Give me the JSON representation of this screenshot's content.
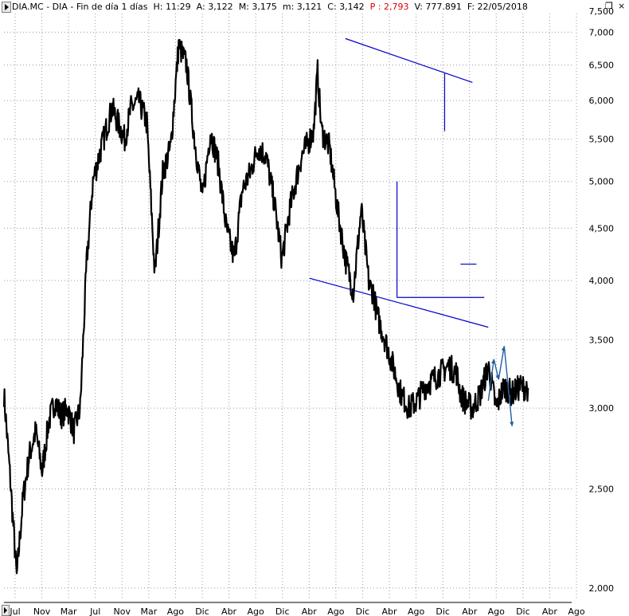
{
  "header": {
    "symbol": "DIA.MC - DIA - Fin de día 1 días",
    "hora": "H: 11:29",
    "apertura": "A: 3,122",
    "maximo": "M: 3,175",
    "minimo": "m: 3,121",
    "cierre": "C: 3,142",
    "p_label": "P",
    "p_value": ": 2,793",
    "volumen": "V: 777.891",
    "fecha": "F: 22/05/2018"
  },
  "window_controls": {
    "restore": "❐",
    "close": "×"
  },
  "chart_data": {
    "type": "line",
    "title": "",
    "xlabel": "",
    "ylabel": "",
    "yscale": "log",
    "ylim": [
      1950,
      7300
    ],
    "y_ticks": [
      2000,
      2500,
      3000,
      3500,
      4000,
      4500,
      5000,
      5500,
      6000,
      6500,
      7000
    ],
    "y_tick_labels": [
      "2,000",
      "2,500",
      "3,000",
      "3,500",
      "4,000",
      "4,500",
      "5,000",
      "5,500",
      "6,000",
      "6,500",
      "7,000"
    ],
    "top_partial_label": "7,500",
    "x_tick_labels": [
      "Jul",
      "Nov",
      "Mar",
      "Jul",
      "Nov",
      "Mar",
      "Ago",
      "Dic",
      "Abr",
      "Ago",
      "Dic",
      "Abr",
      "Ago",
      "Dic",
      "Abr",
      "Ago",
      "Dic",
      "Abr",
      "Ago",
      "Dic",
      "Abr",
      "Ago"
    ],
    "grid": true,
    "series": [
      {
        "color": "#000000",
        "t": [
          0,
          0.8,
          1.6,
          2.4,
          3.2,
          4,
          4.8,
          5.6,
          6.4,
          7.2,
          8,
          8.8,
          9.6,
          10.4,
          11.2,
          12,
          12.8,
          13.6,
          14.4,
          15.2,
          16,
          17,
          18,
          19,
          20,
          21,
          22,
          23,
          24,
          25,
          26,
          27,
          28,
          29,
          30,
          31,
          32,
          33,
          34,
          35,
          36,
          37,
          37.5,
          38,
          39,
          39.5,
          40,
          41,
          42,
          43,
          44,
          45,
          46,
          46.5,
          47,
          48,
          49,
          50,
          51,
          52,
          53,
          54,
          55,
          56,
          57,
          57.5,
          58,
          59,
          60,
          61,
          62,
          62.6,
          63,
          64,
          65,
          66
        ],
        "values": [
          3100,
          2550,
          2050,
          2450,
          2700,
          2850,
          2600,
          2900,
          3050,
          2950,
          3000,
          2850,
          3000,
          4150,
          5000,
          5300,
          5600,
          5900,
          5700,
          5500,
          5900,
          6000,
          5700,
          4050,
          5100,
          5400,
          6800,
          6500,
          5500,
          4800,
          5600,
          5200,
          4500,
          4200,
          4900,
          5100,
          5400,
          5300,
          4800,
          4200,
          4700,
          5100,
          5300,
          5400,
          5600,
          6400,
          5600,
          5400,
          4700,
          4200,
          3900,
          4700,
          3950,
          3900,
          3700,
          3500,
          3300,
          3100,
          3000,
          3050,
          3150,
          3200,
          3250,
          3300,
          3250,
          3100,
          3050,
          3000,
          3100,
          3300,
          3000,
          3100,
          3150,
          3100,
          3150,
          3140
        ]
      }
    ],
    "trend_lines": [
      {
        "color": "#0000cc",
        "from": [
          43,
          6900
        ],
        "to": [
          59,
          6250
        ]
      },
      {
        "color": "#0000cc",
        "from": [
          38.5,
          4020
        ],
        "to": [
          61,
          3600
        ]
      },
      {
        "color": "#0000cc",
        "from": [
          49.5,
          3850
        ],
        "to": [
          60.5,
          3850
        ]
      },
      {
        "color": "#0000cc",
        "from": [
          57.5,
          4150
        ],
        "to": [
          59.5,
          4150
        ]
      },
      {
        "color": "#0000cc",
        "from": [
          49.5,
          5000
        ],
        "to": [
          49.5,
          3850
        ]
      },
      {
        "color": "#0000cc",
        "from": [
          55.5,
          6380
        ],
        "to": [
          55.5,
          5600
        ]
      }
    ],
    "projection": {
      "color": "#1f5fa0",
      "points": [
        [
          61,
          3050
        ],
        [
          61.7,
          3350
        ],
        [
          62.3,
          3200
        ],
        [
          63,
          3450
        ],
        [
          64,
          2880
        ]
      ]
    }
  }
}
